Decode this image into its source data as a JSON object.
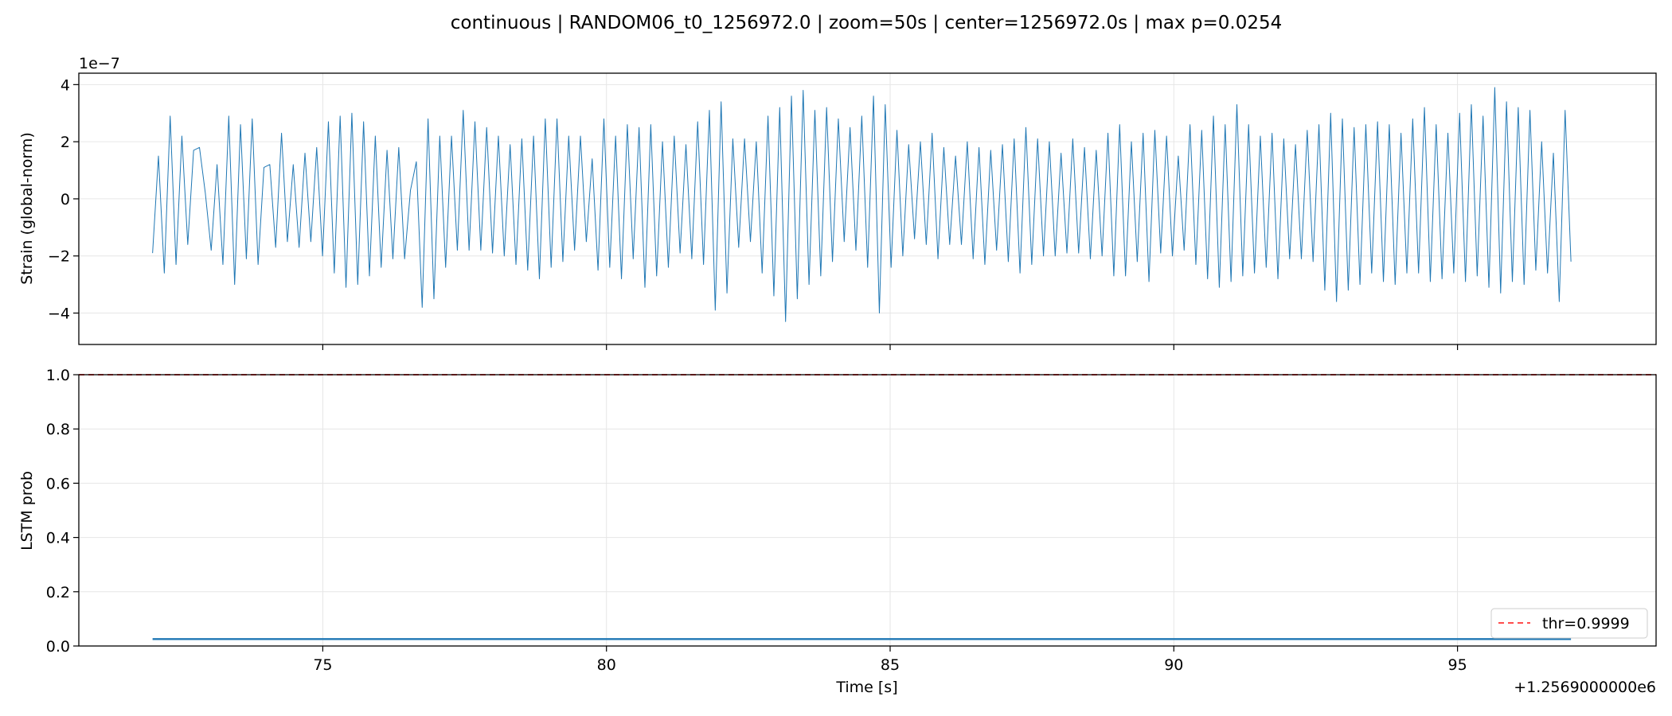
{
  "chart_data": {
    "title": "continuous | RANDOM06_t0_1256972.0 | zoom=50s | center=1256972.0s | max p=0.0254",
    "x_offset_label": "+1.2569000000e6",
    "x_axis": {
      "label": "Time [s]",
      "range": [
        70.7,
        98.5
      ],
      "ticks": [
        75,
        80,
        85,
        90,
        95
      ],
      "tick_labels": [
        "75",
        "80",
        "85",
        "90",
        "95"
      ]
    },
    "panels": [
      {
        "type": "line",
        "ylabel": "Strain (global-norm)",
        "y_scale_label": "1e−7",
        "ylim": [
          -5.1,
          4.4
        ],
        "yticks": [
          -4,
          -2,
          0,
          2,
          4
        ],
        "ytick_labels": [
          "−4",
          "−2",
          "0",
          "2",
          "4"
        ],
        "grid": true,
        "series": [
          {
            "color": "#1f77b4",
            "samples_x_start": 72.0,
            "samples_x_end": 97.0,
            "values": [
              -1.9,
              1.5,
              -2.6,
              2.9,
              -2.3,
              2.2,
              -1.6,
              1.7,
              1.8,
              0.2,
              -1.8,
              1.2,
              -2.3,
              2.9,
              -3.0,
              2.6,
              -2.1,
              2.8,
              -2.3,
              1.1,
              1.2,
              -1.7,
              2.3,
              -1.5,
              1.2,
              -1.7,
              1.6,
              -1.5,
              1.8,
              -2.0,
              2.7,
              -2.6,
              2.9,
              -3.1,
              3.0,
              -3.0,
              2.7,
              -2.7,
              2.2,
              -2.4,
              1.7,
              -2.1,
              1.8,
              -2.1,
              0.3,
              1.3,
              -3.8,
              2.8,
              -3.5,
              2.2,
              -2.4,
              2.2,
              -1.8,
              3.1,
              -1.8,
              2.7,
              -1.8,
              2.5,
              -1.9,
              2.2,
              -2.0,
              1.9,
              -2.3,
              2.1,
              -2.5,
              2.2,
              -2.8,
              2.8,
              -2.4,
              2.8,
              -2.2,
              2.2,
              -1.8,
              2.2,
              -1.5,
              1.4,
              -2.5,
              2.8,
              -2.4,
              2.2,
              -2.8,
              2.6,
              -2.1,
              2.5,
              -3.1,
              2.6,
              -2.7,
              2.0,
              -2.4,
              2.2,
              -1.9,
              1.9,
              -2.1,
              2.7,
              -2.3,
              3.1,
              -3.9,
              3.4,
              -3.3,
              2.1,
              -1.7,
              2.1,
              -1.5,
              2.0,
              -2.6,
              2.9,
              -3.4,
              3.2,
              -4.3,
              3.6,
              -3.5,
              3.8,
              -3.0,
              3.1,
              -2.7,
              3.2,
              -2.2,
              2.8,
              -1.5,
              2.5,
              -1.8,
              2.9,
              -2.4,
              3.6,
              -4.0,
              3.3,
              -2.4,
              2.4,
              -2.0,
              1.9,
              -1.4,
              2.0,
              -1.6,
              2.3,
              -2.1,
              1.8,
              -1.6,
              1.5,
              -1.6,
              2.0,
              -2.1,
              1.8,
              -2.3,
              1.7,
              -1.8,
              1.9,
              -2.2,
              2.1,
              -2.6,
              2.5,
              -2.3,
              2.1,
              -2.0,
              2.0,
              -2.0,
              1.6,
              -1.9,
              2.1,
              -1.9,
              1.8,
              -2.1,
              1.7,
              -2.0,
              2.3,
              -2.7,
              2.6,
              -2.7,
              2.0,
              -2.2,
              2.3,
              -2.9,
              2.4,
              -1.9,
              2.2,
              -2.0,
              1.5,
              -1.8,
              2.6,
              -2.3,
              2.4,
              -2.8,
              2.9,
              -3.1,
              2.6,
              -2.9,
              3.3,
              -2.7,
              2.6,
              -2.6,
              2.2,
              -2.4,
              2.3,
              -2.8,
              2.1,
              -2.1,
              1.9,
              -2.1,
              2.4,
              -2.2,
              2.6,
              -3.2,
              3.0,
              -3.6,
              2.8,
              -3.2,
              2.5,
              -3.0,
              2.6,
              -2.6,
              2.7,
              -2.9,
              2.6,
              -3.0,
              2.3,
              -2.6,
              2.8,
              -2.6,
              3.2,
              -2.9,
              2.6,
              -2.8,
              2.3,
              -2.6,
              3.0,
              -2.9,
              3.3,
              -2.7,
              2.9,
              -3.1,
              3.9,
              -3.3,
              3.4,
              -2.9,
              3.2,
              -3.0,
              3.1,
              -2.5,
              2.0,
              -2.6,
              1.6,
              -3.6,
              3.1,
              -2.2
            ]
          }
        ]
      },
      {
        "type": "line",
        "ylabel": "LSTM prob",
        "ylim": [
          0.0,
          1.0
        ],
        "yticks": [
          0.0,
          0.2,
          0.4,
          0.6,
          0.8,
          1.0
        ],
        "ytick_labels": [
          "0.0",
          "0.2",
          "0.4",
          "0.6",
          "0.8",
          "1.0"
        ],
        "grid": true,
        "series": [
          {
            "color": "#1f77b4",
            "x": [
              72.0,
              97.0
            ],
            "y": [
              0.0254,
              0.0254
            ]
          }
        ],
        "threshold": {
          "value": 0.9999,
          "color": "#ff4d4d",
          "style": "dashed",
          "legend_label": "thr=0.9999"
        },
        "legend_location": "lower-right"
      }
    ]
  }
}
